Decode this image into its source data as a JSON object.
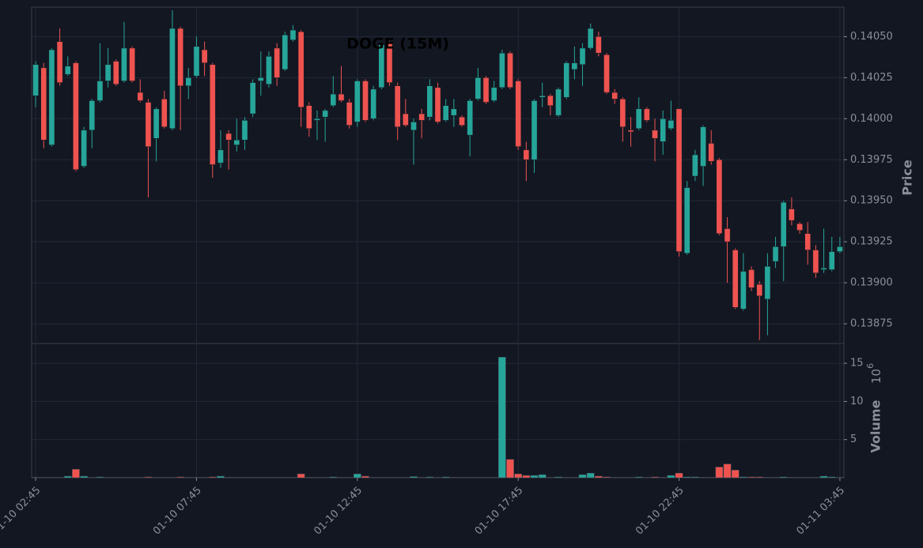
{
  "chart_data": {
    "type": "candlestick",
    "title": "DOGE (15M)",
    "categories": [
      "01-10 02:45",
      null,
      null,
      null,
      null,
      null,
      null,
      null,
      null,
      null,
      null,
      null,
      null,
      null,
      null,
      null,
      null,
      null,
      null,
      null,
      "01-10 07:45",
      null,
      null,
      null,
      null,
      null,
      null,
      null,
      null,
      null,
      null,
      null,
      null,
      null,
      null,
      null,
      null,
      null,
      null,
      null,
      "01-10 12:45",
      null,
      null,
      null,
      null,
      null,
      null,
      null,
      null,
      null,
      null,
      null,
      null,
      null,
      null,
      null,
      null,
      null,
      null,
      null,
      "01-10 17:45",
      null,
      null,
      null,
      null,
      null,
      null,
      null,
      null,
      null,
      null,
      null,
      null,
      null,
      null,
      null,
      null,
      null,
      null,
      null,
      "01-10 22:45",
      null,
      null,
      null,
      null,
      null,
      null,
      null,
      null,
      null,
      null,
      null,
      null,
      null,
      null,
      null,
      null,
      null,
      null,
      null,
      "01-11 03:45"
    ],
    "open": [
      0.14014,
      0.14031,
      0.13984,
      0.14047,
      0.14027,
      0.14034,
      0.13971,
      0.13993,
      0.14011,
      0.14023,
      0.14035,
      0.14023,
      0.14043,
      0.14016,
      0.1401,
      0.13988,
      0.14012,
      0.13994,
      0.14055,
      0.1402,
      0.14026,
      0.14042,
      0.14033,
      0.13973,
      0.13991,
      0.13984,
      0.13987,
      0.14003,
      0.14023,
      0.14021,
      0.14043,
      0.1403,
      0.14048,
      0.14053,
      0.14008,
      0.13999,
      0.14001,
      0.14008,
      0.14015,
      0.1401,
      0.13998,
      0.14023,
      0.14,
      0.14019,
      0.14046,
      0.1402,
      0.14003,
      0.13993,
      0.14003,
      0.14001,
      0.14019,
      0.13999,
      0.14002,
      0.14001,
      0.1399,
      0.14012,
      0.14025,
      0.14011,
      0.14019,
      0.1404,
      0.14023,
      0.13981,
      0.13975,
      0.14013,
      0.14014,
      0.14002,
      0.14013,
      0.1403,
      0.14033,
      0.14043,
      0.1405,
      0.14039,
      0.14016,
      0.14012,
      0.13993,
      0.13994,
      0.14006,
      0.13993,
      0.13986,
      0.13994,
      0.14006,
      0.13918,
      0.13965,
      0.13971,
      0.13985,
      0.13975,
      0.13933,
      0.1392,
      0.13884,
      0.13908,
      0.13899,
      0.1389,
      0.13913,
      0.13922,
      0.13945,
      0.13936,
      0.1393,
      0.1392,
      0.13908,
      0.13908,
      0.13919
    ],
    "high": [
      0.14035,
      0.14034,
      0.14043,
      0.14055,
      0.14038,
      0.14035,
      0.13995,
      0.14012,
      0.14046,
      0.14043,
      0.14036,
      0.14059,
      0.14044,
      0.14024,
      0.14012,
      0.14007,
      0.14017,
      0.14066,
      0.14056,
      0.14031,
      0.1405,
      0.14047,
      0.14034,
      0.13993,
      0.13993,
      0.14,
      0.14001,
      0.14024,
      0.14041,
      0.14041,
      0.14046,
      0.14053,
      0.14057,
      0.14054,
      0.1401,
      0.14005,
      0.14006,
      0.14026,
      0.14032,
      0.14012,
      0.14024,
      0.14024,
      0.1402,
      0.14046,
      0.14047,
      0.14022,
      0.14012,
      0.14,
      0.14006,
      0.14024,
      0.14022,
      0.14012,
      0.14012,
      0.14002,
      0.14012,
      0.14031,
      0.14026,
      0.14023,
      0.14042,
      0.14041,
      0.14024,
      0.13986,
      0.14012,
      0.14022,
      0.14015,
      0.14019,
      0.14035,
      0.14044,
      0.14046,
      0.14058,
      0.14053,
      0.1404,
      0.14018,
      0.14013,
      0.14001,
      0.14013,
      0.14007,
      0.14,
      0.14005,
      0.14011,
      0.14006,
      0.13962,
      0.13981,
      0.13996,
      0.13993,
      0.13976,
      0.1394,
      0.13921,
      0.13918,
      0.1391,
      0.13901,
      0.13918,
      0.13928,
      0.1395,
      0.13952,
      0.13937,
      0.13937,
      0.13923,
      0.13933,
      0.13928,
      0.13928
    ],
    "low": [
      0.14007,
      0.13982,
      0.13983,
      0.1402,
      0.14026,
      0.13968,
      0.1397,
      0.13982,
      0.1401,
      0.14019,
      0.1402,
      0.14022,
      0.14022,
      0.1401,
      0.13952,
      0.13974,
      0.13994,
      0.13993,
      0.13993,
      0.14012,
      0.14025,
      0.14026,
      0.13964,
      0.1397,
      0.13969,
      0.1398,
      0.13981,
      0.14001,
      0.14014,
      0.14019,
      0.1402,
      0.14029,
      0.14047,
      0.13995,
      0.13989,
      0.13987,
      0.13986,
      0.14007,
      0.1401,
      0.13994,
      0.13995,
      0.13998,
      0.13999,
      0.14018,
      0.1402,
      0.13987,
      0.13995,
      0.13972,
      0.13988,
      0.13999,
      0.13997,
      0.13998,
      0.13995,
      0.13995,
      0.13977,
      0.14011,
      0.14009,
      0.1401,
      0.14018,
      0.14018,
      0.13981,
      0.13962,
      0.13967,
      0.14007,
      0.14002,
      0.14001,
      0.14012,
      0.14024,
      0.1402,
      0.14042,
      0.14038,
      0.14015,
      0.14009,
      0.13986,
      0.13983,
      0.13993,
      0.13998,
      0.13974,
      0.13978,
      0.13993,
      0.13916,
      0.13917,
      0.13962,
      0.13959,
      0.13972,
      0.13929,
      0.139,
      0.13884,
      0.13883,
      0.13895,
      0.13865,
      0.13868,
      0.13909,
      0.13901,
      0.13935,
      0.1393,
      0.13911,
      0.13903,
      0.13906,
      0.13907,
      0.13918
    ],
    "close": [
      0.14033,
      0.13987,
      0.14042,
      0.14022,
      0.14032,
      0.13969,
      0.13993,
      0.14011,
      0.14023,
      0.14033,
      0.14021,
      0.14043,
      0.14023,
      0.14011,
      0.13983,
      0.14006,
      0.13995,
      0.14055,
      0.1402,
      0.14025,
      0.14044,
      0.14034,
      0.13972,
      0.13981,
      0.13987,
      0.13987,
      0.13999,
      0.14022,
      0.14025,
      0.14038,
      0.14025,
      0.14051,
      0.14054,
      0.14007,
      0.13994,
      0.14,
      0.14005,
      0.14015,
      0.14011,
      0.13996,
      0.14023,
      0.13999,
      0.14018,
      0.14045,
      0.14022,
      0.13995,
      0.13996,
      0.13998,
      0.13999,
      0.1402,
      0.13998,
      0.14008,
      0.14006,
      0.13996,
      0.14011,
      0.14025,
      0.1401,
      0.14019,
      0.1404,
      0.14019,
      0.13983,
      0.13975,
      0.14011,
      0.14014,
      0.14008,
      0.14018,
      0.14034,
      0.14034,
      0.14043,
      0.14055,
      0.1404,
      0.14016,
      0.14012,
      0.13995,
      0.13992,
      0.14006,
      0.13999,
      0.13988,
      0.14,
      0.13999,
      0.13919,
      0.13958,
      0.13978,
      0.13995,
      0.13974,
      0.1393,
      0.13925,
      0.13885,
      0.13907,
      0.13897,
      0.13892,
      0.1391,
      0.13922,
      0.13949,
      0.13938,
      0.13932,
      0.1392,
      0.13906,
      0.13909,
      0.13919,
      0.13922
    ],
    "volume": [
      0.05,
      0.05,
      0.05,
      0.05,
      0.2,
      1.1,
      0.2,
      0.05,
      0.1,
      0.05,
      0.05,
      0.05,
      0.05,
      0.05,
      0.1,
      0.05,
      0.05,
      0.05,
      0.1,
      0.05,
      0.05,
      0.05,
      0.1,
      0.2,
      0.05,
      0.05,
      0.05,
      0.05,
      0.05,
      0.05,
      0.05,
      0.05,
      0.05,
      0.5,
      0.05,
      0.05,
      0.05,
      0.1,
      0.05,
      0.05,
      0.5,
      0.2,
      0.05,
      0.05,
      0.05,
      0.05,
      0.05,
      0.15,
      0.05,
      0.1,
      0.05,
      0.1,
      0.05,
      0.05,
      0.05,
      0.05,
      0.05,
      0.05,
      15.8,
      2.4,
      0.5,
      0.3,
      0.3,
      0.4,
      0.05,
      0.1,
      0.05,
      0.05,
      0.4,
      0.6,
      0.2,
      0.1,
      0.05,
      0.05,
      0.05,
      0.1,
      0.05,
      0.1,
      0.05,
      0.3,
      0.6,
      0.1,
      0.1,
      0.05,
      0.05,
      1.4,
      1.8,
      1.0,
      0.1,
      0.1,
      0.1,
      0.05,
      0.05,
      0.1,
      0.05,
      0.05,
      0.05,
      0.05,
      0.2,
      0.1,
      0.05
    ],
    "up_color": "#26a69a",
    "down_color": "#ef5350",
    "ylabel": "Price",
    "ylim": [
      0.13863,
      0.14068
    ],
    "yticks": [
      0.13875,
      {
        "value": 0.139,
        "label": "0.13900"
      },
      0.13925,
      {
        "value": 0.1395,
        "label": "0.13950"
      },
      0.13975,
      {
        "value": 0.14,
        "label": "0.14000"
      },
      0.14025,
      {
        "value": 0.1405,
        "label": "0.14050"
      }
    ],
    "volume_ylabel": "Volume",
    "volume_scale_base": "10",
    "volume_scale_exponent": "6",
    "volume_ylim": [
      0,
      17.6
    ],
    "volume_yticks": [
      5,
      10,
      15
    ],
    "grid": true
  }
}
